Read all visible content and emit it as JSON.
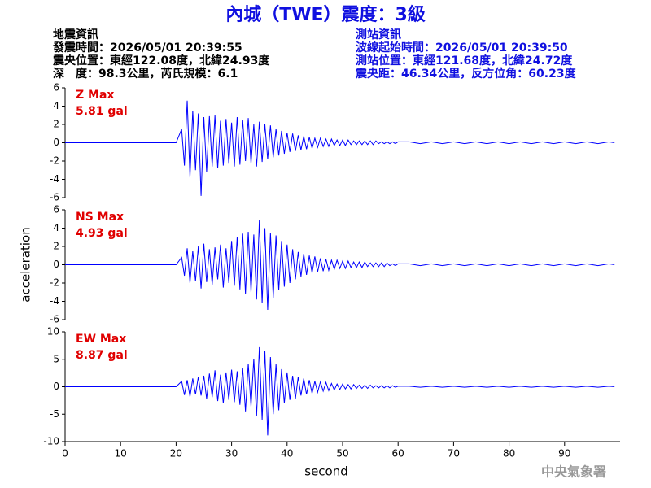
{
  "header": {
    "title": "內城（TWE）震度：3級",
    "event": [
      "地震資訊",
      "發震時間：2026/05/01 20:39:55",
      "震央位置：東經122.08度，北緯24.93度",
      "深　度：98.3公里，芮氏規模：6.1"
    ],
    "station": [
      "測站資訊",
      "波線起始時間：2026/05/01 20:39:50",
      "測站位置：東經121.68度，北緯24.72度",
      "震央距：46.34公里，反方位角：60.23度"
    ],
    "footer": "中央氣象署"
  },
  "chart_data": [
    {
      "type": "line",
      "annotations": [
        "Z Max",
        "5.81 gal"
      ],
      "color": "#0000ff",
      "xlim": [
        0,
        100
      ],
      "ylim": [
        -6,
        6
      ],
      "yticks": [
        -6,
        -4,
        -2,
        0,
        2,
        4,
        6
      ],
      "x": [
        0,
        20,
        21,
        21.5,
        22,
        22.5,
        23,
        23.5,
        24,
        24.5,
        25,
        25.5,
        26,
        26.5,
        27,
        27.5,
        28,
        28.5,
        29,
        29.5,
        30,
        30.5,
        31,
        31.5,
        32,
        32.5,
        33,
        33.5,
        34,
        34.5,
        35,
        35.5,
        36,
        36.5,
        37,
        37.5,
        38,
        38.5,
        39,
        39.5,
        40,
        40.5,
        41,
        41.5,
        42,
        42.5,
        43,
        43.5,
        44,
        44.5,
        45,
        45.5,
        46,
        46.5,
        47,
        47.5,
        48,
        48.5,
        49,
        49.5,
        50,
        50.5,
        51,
        51.5,
        52,
        52.5,
        53,
        53.5,
        54,
        54.5,
        55,
        55.5,
        56,
        56.5,
        57,
        57.5,
        58,
        58.5,
        59,
        59.5,
        60,
        62,
        64,
        66,
        68,
        70,
        72,
        74,
        76,
        78,
        80,
        82,
        84,
        86,
        88,
        90,
        92,
        94,
        96,
        98,
        99
      ],
      "values": [
        0,
        0,
        1.5,
        -2.5,
        4.6,
        -3.8,
        3.5,
        -3.0,
        3.2,
        -5.81,
        2.8,
        -3.2,
        2.9,
        -2.6,
        3.0,
        -2.8,
        2.4,
        -2.5,
        2.6,
        -2.3,
        2.2,
        -2.6,
        2.8,
        -2.4,
        2.5,
        -2.0,
        2.7,
        -2.3,
        2.0,
        -2.6,
        2.3,
        -2.1,
        2.0,
        -1.8,
        1.9,
        -1.6,
        1.5,
        -1.4,
        1.3,
        -1.2,
        1.1,
        -1.0,
        1.0,
        -0.9,
        0.8,
        -0.8,
        0.7,
        -0.7,
        0.6,
        -0.6,
        0.5,
        -0.5,
        0.5,
        -0.4,
        0.4,
        -0.4,
        0.4,
        -0.3,
        0.3,
        -0.3,
        0.3,
        -0.3,
        0.3,
        -0.2,
        0.2,
        -0.2,
        0.2,
        -0.2,
        0.2,
        -0.2,
        0.2,
        -0.2,
        0.2,
        -0.1,
        0.1,
        -0.1,
        0.1,
        -0.1,
        0.1,
        -0.1,
        0.1,
        0.1,
        -0.1,
        0.1,
        -0.1,
        0.1,
        -0.1,
        0.1,
        -0.1,
        0.1,
        -0.1,
        0.1,
        -0.1,
        0.1,
        -0.1,
        0.1,
        -0.1,
        0.1,
        -0.1,
        0.1,
        0
      ]
    },
    {
      "type": "line",
      "annotations": [
        "NS Max",
        "4.93 gal"
      ],
      "ylabel": "acceleration",
      "color": "#0000ff",
      "xlim": [
        0,
        100
      ],
      "ylim": [
        -6,
        6
      ],
      "yticks": [
        -6,
        -4,
        -2,
        0,
        2,
        4,
        6
      ],
      "x": [
        0,
        20,
        21,
        21.5,
        22,
        22.5,
        23,
        23.5,
        24,
        24.5,
        25,
        25.5,
        26,
        26.5,
        27,
        27.5,
        28,
        28.5,
        29,
        29.5,
        30,
        30.5,
        31,
        31.5,
        32,
        32.5,
        33,
        33.5,
        34,
        34.5,
        35,
        35.5,
        36,
        36.5,
        37,
        37.5,
        38,
        38.5,
        39,
        39.5,
        40,
        40.5,
        41,
        41.5,
        42,
        42.5,
        43,
        43.5,
        44,
        44.5,
        45,
        45.5,
        46,
        46.5,
        47,
        47.5,
        48,
        48.5,
        49,
        49.5,
        50,
        50.5,
        51,
        51.5,
        52,
        52.5,
        53,
        53.5,
        54,
        54.5,
        55,
        55.5,
        56,
        56.5,
        57,
        57.5,
        58,
        58.5,
        59,
        59.5,
        60,
        62,
        64,
        66,
        68,
        70,
        72,
        74,
        76,
        78,
        80,
        82,
        84,
        86,
        88,
        90,
        92,
        94,
        96,
        98,
        99
      ],
      "values": [
        0,
        0,
        0.8,
        -1.2,
        1.8,
        -2.0,
        1.5,
        -1.8,
        2.0,
        -2.6,
        2.3,
        -1.9,
        1.7,
        -2.2,
        1.9,
        -1.6,
        2.2,
        -2.5,
        1.8,
        -2.0,
        2.6,
        -2.3,
        3.0,
        -2.7,
        3.4,
        -3.2,
        3.6,
        -3.0,
        3.3,
        -3.8,
        4.9,
        -4.2,
        4.0,
        -4.93,
        3.5,
        -3.6,
        3.2,
        -2.8,
        2.6,
        -2.4,
        2.2,
        -2.0,
        1.7,
        -1.6,
        1.4,
        -1.3,
        1.2,
        -1.1,
        1.0,
        -0.9,
        0.9,
        -0.8,
        0.7,
        -0.7,
        0.6,
        -0.6,
        0.5,
        -0.5,
        0.5,
        -0.4,
        0.4,
        -0.4,
        0.4,
        -0.3,
        0.3,
        -0.3,
        0.3,
        -0.3,
        0.3,
        -0.2,
        0.2,
        -0.2,
        0.2,
        -0.2,
        0.2,
        -0.2,
        0.2,
        -0.1,
        0.1,
        -0.1,
        0.1,
        0.1,
        -0.1,
        0.1,
        -0.1,
        0.1,
        -0.1,
        0.1,
        -0.1,
        0.1,
        -0.1,
        0.1,
        -0.1,
        0.1,
        -0.1,
        0.1,
        -0.1,
        0.1,
        -0.1,
        0.1,
        0
      ]
    },
    {
      "type": "line",
      "annotations": [
        "EW Max",
        "8.87 gal"
      ],
      "xlabel": "second",
      "color": "#0000ff",
      "xlim": [
        0,
        100
      ],
      "xticks": [
        0,
        10,
        20,
        30,
        40,
        50,
        60,
        70,
        80,
        90
      ],
      "ylim": [
        -10,
        10
      ],
      "yticks": [
        -10,
        -5,
        0,
        5,
        10
      ],
      "x": [
        0,
        20,
        21,
        21.5,
        22,
        22.5,
        23,
        23.5,
        24,
        24.5,
        25,
        25.5,
        26,
        26.5,
        27,
        27.5,
        28,
        28.5,
        29,
        29.5,
        30,
        30.5,
        31,
        31.5,
        32,
        32.5,
        33,
        33.5,
        34,
        34.5,
        35,
        35.5,
        36,
        36.5,
        37,
        37.5,
        38,
        38.5,
        39,
        39.5,
        40,
        40.5,
        41,
        41.5,
        42,
        42.5,
        43,
        43.5,
        44,
        44.5,
        45,
        45.5,
        46,
        46.5,
        47,
        47.5,
        48,
        48.5,
        49,
        49.5,
        50,
        50.5,
        51,
        51.5,
        52,
        52.5,
        53,
        53.5,
        54,
        54.5,
        55,
        55.5,
        56,
        56.5,
        57,
        57.5,
        58,
        58.5,
        59,
        59.5,
        60,
        62,
        64,
        66,
        68,
        70,
        72,
        74,
        76,
        78,
        80,
        82,
        84,
        86,
        88,
        90,
        92,
        94,
        96,
        98,
        99
      ],
      "values": [
        0,
        0,
        1.0,
        -1.5,
        1.2,
        -1.8,
        1.5,
        -1.4,
        1.8,
        -1.6,
        2.0,
        -2.2,
        2.4,
        -1.9,
        3.0,
        -2.6,
        2.2,
        -3.0,
        2.6,
        -2.4,
        3.1,
        -2.8,
        2.8,
        -3.3,
        3.4,
        -4.5,
        4.2,
        -3.6,
        5.1,
        -5.4,
        7.2,
        -6.0,
        6.5,
        -8.87,
        5.4,
        -5.0,
        4.1,
        -4.3,
        3.2,
        -3.0,
        2.6,
        -2.4,
        2.0,
        -2.2,
        1.8,
        -1.6,
        1.5,
        -1.4,
        1.2,
        -1.2,
        1.0,
        -1.0,
        0.9,
        -0.8,
        0.8,
        -0.7,
        0.6,
        -0.6,
        0.5,
        -0.5,
        0.5,
        -0.4,
        0.4,
        -0.4,
        0.4,
        -0.3,
        0.3,
        -0.3,
        0.3,
        -0.3,
        0.3,
        -0.2,
        0.2,
        -0.2,
        0.2,
        -0.2,
        0.2,
        -0.2,
        0.2,
        -0.1,
        0.1,
        0.1,
        -0.1,
        0.1,
        -0.1,
        0.1,
        -0.1,
        0.1,
        -0.1,
        0.1,
        -0.1,
        0.1,
        -0.1,
        0.1,
        -0.1,
        0.1,
        -0.1,
        0.1,
        -0.1,
        0.1,
        0
      ]
    }
  ]
}
